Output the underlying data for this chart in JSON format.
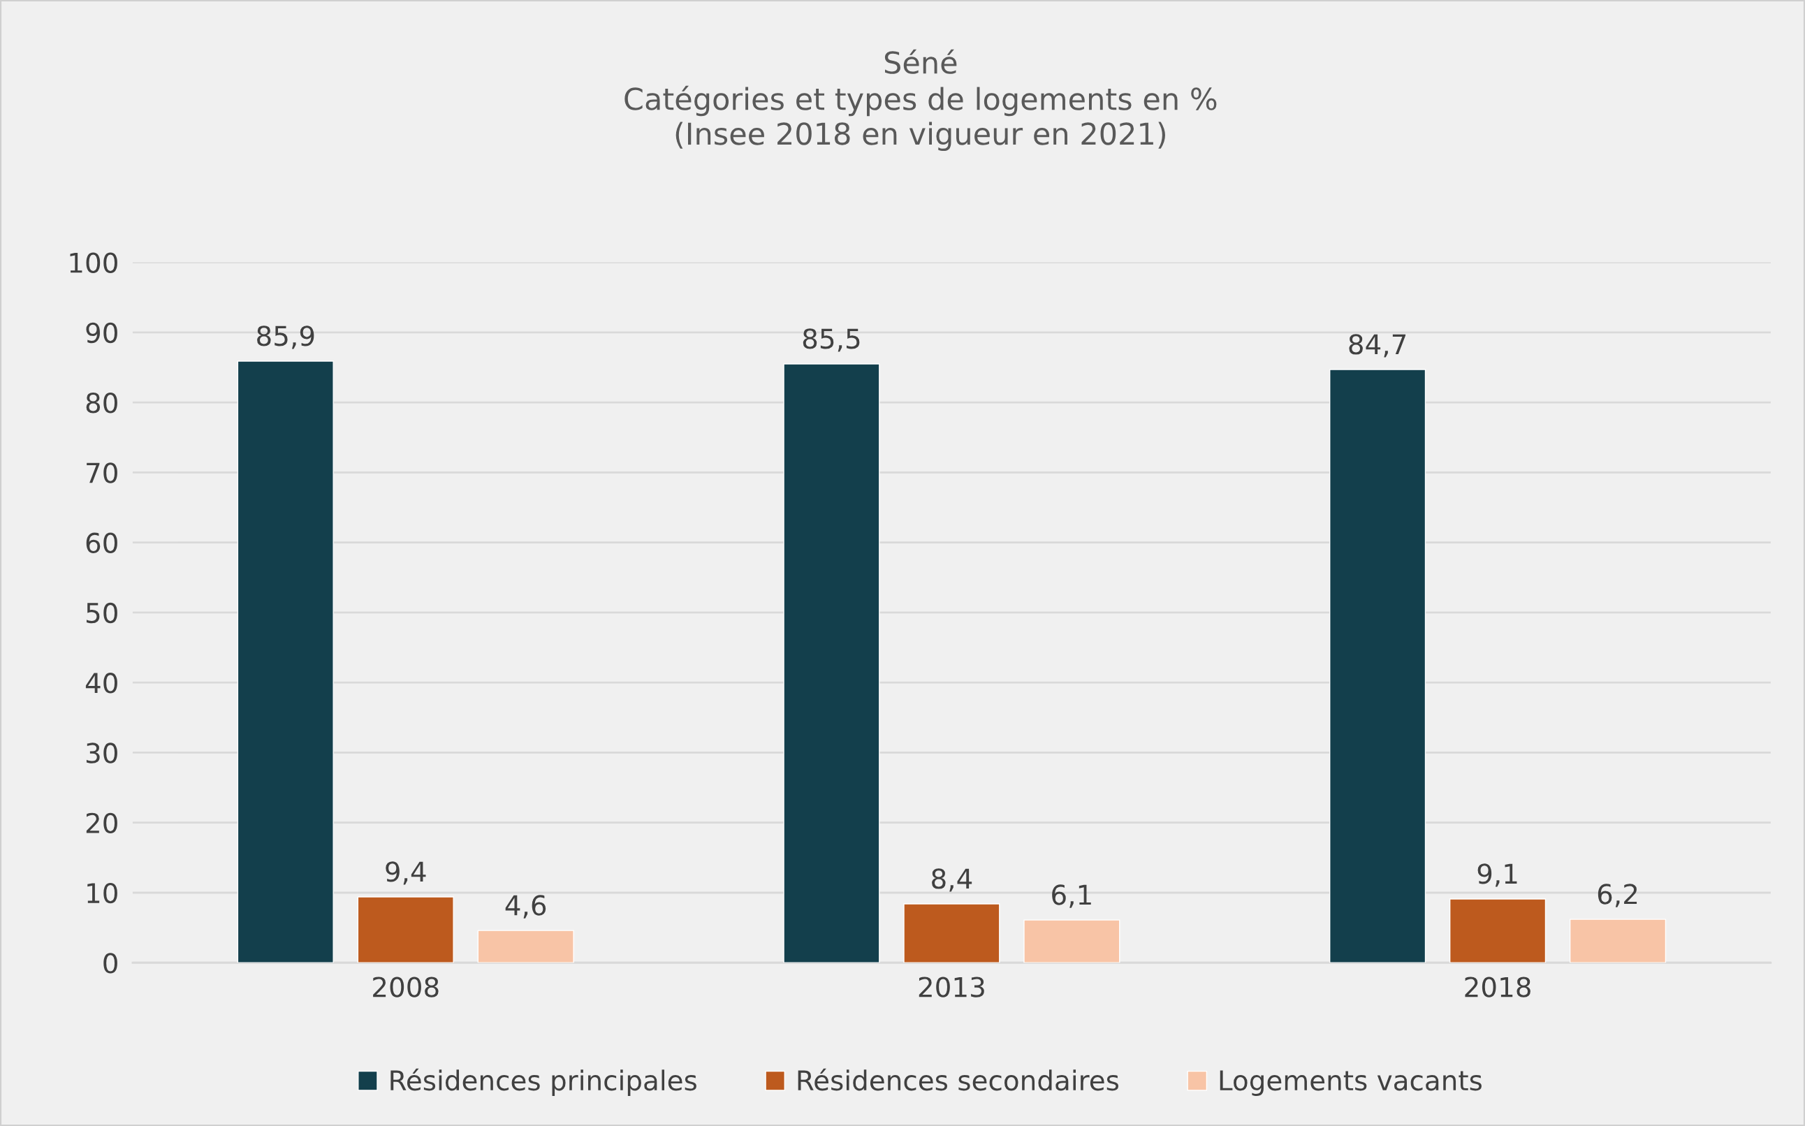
{
  "chart_data": {
    "type": "bar",
    "title": "Séné\nCatégories et types de logements en %\n(Insee 2018 en vigueur en 2021)",
    "categories": [
      "2008",
      "2013",
      "2018"
    ],
    "series": [
      {
        "name": "Résidences principales",
        "color": "#133f4c",
        "values": [
          85.9,
          85.5,
          84.7
        ],
        "value_labels": [
          "85,9",
          "85,5",
          "84,7"
        ]
      },
      {
        "name": "Résidences secondaires",
        "color": "#bd5a1e",
        "values": [
          9.4,
          8.4,
          9.1
        ],
        "value_labels": [
          "9,4",
          "8,4",
          "9,1"
        ]
      },
      {
        "name": "Logements vacants",
        "color": "#f8c4a6",
        "values": [
          4.6,
          6.1,
          6.2
        ],
        "value_labels": [
          "4,6",
          "6,1",
          "6,2"
        ]
      }
    ],
    "ylim": [
      0,
      100
    ],
    "yticks": [
      0,
      10,
      20,
      30,
      40,
      50,
      60,
      70,
      80,
      90,
      100
    ],
    "grid": "y",
    "legend": "bottom"
  }
}
